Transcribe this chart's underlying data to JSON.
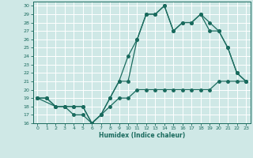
{
  "xlabel": "Humidex (Indice chaleur)",
  "bg_color": "#cfe8e6",
  "line_color": "#1a6b5e",
  "grid_color": "#ffffff",
  "xlim": [
    -0.5,
    23.5
  ],
  "ylim": [
    16,
    30.5
  ],
  "xticks": [
    0,
    1,
    2,
    3,
    4,
    5,
    6,
    7,
    8,
    9,
    10,
    11,
    12,
    13,
    14,
    15,
    16,
    17,
    18,
    19,
    20,
    21,
    22,
    23
  ],
  "yticks": [
    16,
    17,
    18,
    19,
    20,
    21,
    22,
    23,
    24,
    25,
    26,
    27,
    28,
    29,
    30
  ],
  "line1_x": [
    0,
    1,
    2,
    3,
    4,
    5,
    6,
    7,
    8,
    9,
    10,
    11,
    12,
    13,
    14,
    15,
    16,
    17,
    18,
    19,
    20,
    21,
    22,
    23
  ],
  "line1_y": [
    19,
    19,
    18,
    18,
    18,
    18,
    16,
    17,
    18,
    19,
    19,
    20,
    20,
    20,
    20,
    20,
    20,
    20,
    20,
    20,
    21,
    21,
    21,
    21
  ],
  "line2_x": [
    0,
    1,
    2,
    3,
    4,
    5,
    6,
    7,
    8,
    9,
    10,
    11,
    12,
    13,
    14,
    15,
    16,
    17,
    18,
    19,
    20,
    21,
    22,
    23
  ],
  "line2_y": [
    19,
    19,
    18,
    18,
    17,
    17,
    16,
    17,
    19,
    21,
    24,
    26,
    29,
    29,
    30,
    27,
    28,
    28,
    29,
    28,
    27,
    25,
    22,
    21
  ],
  "line3_x": [
    0,
    2,
    3,
    4,
    5,
    6,
    7,
    8,
    9,
    10,
    11,
    12,
    13,
    14,
    15,
    16,
    17,
    18,
    19,
    20,
    21,
    22,
    23
  ],
  "line3_y": [
    19,
    18,
    18,
    18,
    18,
    16,
    17,
    19,
    21,
    21,
    26,
    29,
    29,
    30,
    27,
    28,
    28,
    29,
    27,
    27,
    25,
    22,
    21
  ]
}
